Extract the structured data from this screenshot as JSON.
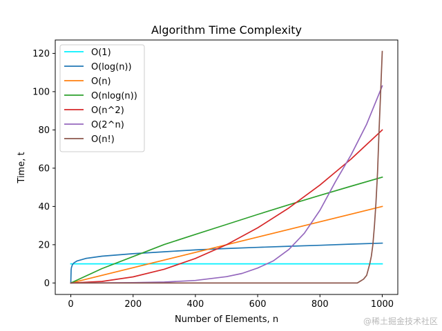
{
  "chart_data": {
    "type": "line",
    "title": "Algorithm Time Complexity",
    "xlabel": "Number of Elements, n",
    "ylabel": "Time, t",
    "xlim": [
      -50,
      1050
    ],
    "ylim": [
      -6,
      127
    ],
    "xticks": [
      0,
      200,
      400,
      600,
      800,
      1000
    ],
    "yticks": [
      0,
      20,
      40,
      60,
      80,
      100,
      120
    ],
    "grid": false,
    "legend_position": "top-left",
    "series": [
      {
        "name": "O(1)",
        "color": "#00f0ff",
        "x": [
          0,
          1000
        ],
        "y": [
          10,
          10
        ]
      },
      {
        "name": "O(log(n))",
        "color": "#1f77b4",
        "x": [
          0,
          1,
          2,
          5,
          10,
          20,
          50,
          100,
          200,
          300,
          400,
          500,
          600,
          700,
          800,
          900,
          1000
        ],
        "y": [
          0,
          6.9,
          8.0,
          9.5,
          10.5,
          11.5,
          12.9,
          14.0,
          15.3,
          16.3,
          17.3,
          18.0,
          18.6,
          19.2,
          19.7,
          20.3,
          20.8
        ]
      },
      {
        "name": "O(n)",
        "color": "#ff7f0e",
        "x": [
          0,
          1000
        ],
        "y": [
          0,
          40
        ]
      },
      {
        "name": "O(nlog(n))",
        "color": "#2ca02c",
        "x": [
          0,
          100,
          200,
          300,
          400,
          500,
          600,
          700,
          800,
          900,
          1000
        ],
        "y": [
          0,
          7.5,
          13.8,
          20.1,
          25.4,
          30.6,
          35.8,
          40.9,
          45.8,
          50.6,
          55.3
        ]
      },
      {
        "name": "O(n^2)",
        "color": "#d62728",
        "x": [
          0,
          100,
          200,
          300,
          400,
          500,
          600,
          700,
          800,
          900,
          1000
        ],
        "y": [
          0,
          0.8,
          3.2,
          7.2,
          12.8,
          20,
          28.8,
          39.2,
          51.2,
          64.8,
          80
        ]
      },
      {
        "name": "O(2^n)",
        "color": "#9467bd",
        "x": [
          0,
          100,
          200,
          300,
          400,
          500,
          550,
          600,
          650,
          700,
          750,
          800,
          850,
          900,
          950,
          1000
        ],
        "y": [
          0,
          0.1,
          0.2,
          0.5,
          1.3,
          3.3,
          5.0,
          7.8,
          11.5,
          17.5,
          26,
          38,
          53,
          67,
          83,
          103
        ]
      },
      {
        "name": "O(n!)",
        "color": "#8c564b",
        "x": [
          0,
          920,
          930,
          940,
          950,
          960,
          965,
          970,
          975,
          980,
          985,
          990,
          995,
          1000
        ],
        "y": [
          0,
          0,
          1.0,
          2.0,
          4.0,
          10.0,
          14.0,
          20.0,
          30.0,
          42.0,
          58.0,
          80.0,
          100.0,
          121.0
        ]
      }
    ]
  },
  "watermark": "@稀土掘金技术社区"
}
